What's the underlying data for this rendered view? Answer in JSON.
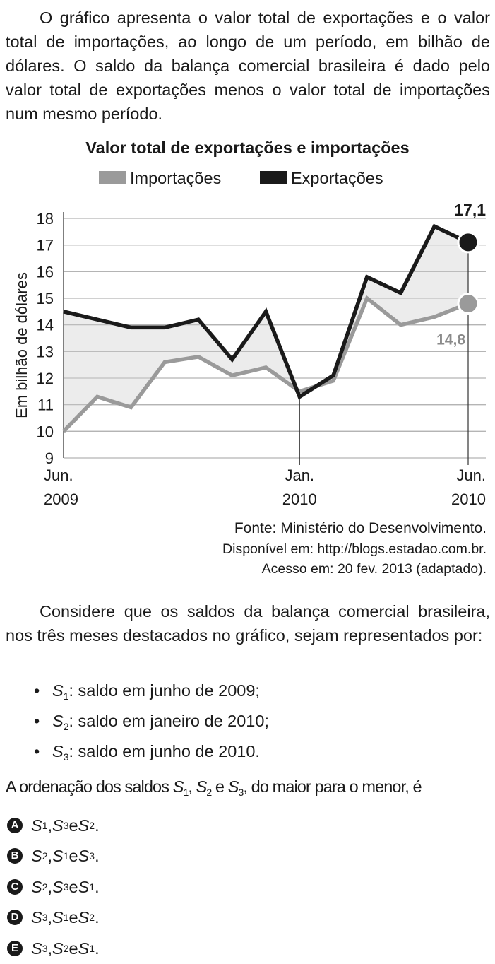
{
  "intro": {
    "text": "O gráfico apresenta o valor total de exportações e o valor total de importações, ao longo de um período, em bilhão de dólares. O saldo da balança comercial brasileira é dado pelo valor total de exportações menos o valor total de importações num mesmo período."
  },
  "colors": {
    "exports": "#1a1a1a",
    "imports": "#9a9a9a",
    "fill": "#ececec",
    "grid": "#b5b5b5"
  },
  "chart_data": {
    "type": "line",
    "title": "Valor total de exportações e importações",
    "ylabel": "Em bilhão de dólares",
    "xlabel": "",
    "ylim": [
      9,
      18
    ],
    "yticks": [
      9,
      10,
      11,
      12,
      13,
      14,
      15,
      16,
      17,
      18
    ],
    "grid": true,
    "legend_position": "top",
    "x_tick_labels": [
      {
        "index": 0,
        "line1": "Jun.",
        "line2": "2009"
      },
      {
        "index": 7,
        "line1": "Jan.",
        "line2": "2010"
      },
      {
        "index": 12,
        "line1": "Jun.",
        "line2": "2010"
      }
    ],
    "series": [
      {
        "name": "Importações",
        "color": "#9a9a9a",
        "values": [
          10.0,
          11.3,
          10.9,
          12.6,
          12.8,
          12.1,
          12.4,
          11.5,
          11.9,
          15.0,
          14.0,
          14.3,
          14.8
        ]
      },
      {
        "name": "Exportações",
        "color": "#1a1a1a",
        "values": [
          14.5,
          14.2,
          13.9,
          13.9,
          14.2,
          12.7,
          14.5,
          11.3,
          12.1,
          15.8,
          15.2,
          17.7,
          17.1
        ]
      }
    ],
    "annotations": [
      {
        "series": "Exportações",
        "index": 12,
        "label": "17,1"
      },
      {
        "series": "Importações",
        "index": 12,
        "label": "14,8"
      }
    ]
  },
  "source": {
    "line1": "Fonte: Ministério do Desenvolvimento.",
    "line2": "Disponível em: http://blogs.estadao.com.br.",
    "line3": "Acesso em: 20 fev. 2013 (adaptado)."
  },
  "consider": {
    "text": "Considere que os saldos da balança comercial brasileira, nos três meses destacados no gráfico, sejam representados por:"
  },
  "bullets": [
    {
      "symbol": "•",
      "var": "S",
      "sub": "1",
      "text": ": saldo em junho de 2009;"
    },
    {
      "symbol": "•",
      "var": "S",
      "sub": "2",
      "text": ": saldo em janeiro de 2010;"
    },
    {
      "symbol": "•",
      "var": "S",
      "sub": "3",
      "text": ": saldo em junho de 2010."
    }
  ],
  "question": {
    "prefix": "A ordenação dos saldos ",
    "var": "S",
    "subs": [
      "1",
      "2",
      "3"
    ],
    "sep1": ", ",
    "sep2": " e ",
    "suffix": ", do maior para o menor, é"
  },
  "options": [
    {
      "letter": "A",
      "order": [
        "1",
        "3",
        "2"
      ]
    },
    {
      "letter": "B",
      "order": [
        "2",
        "1",
        "3"
      ]
    },
    {
      "letter": "C",
      "order": [
        "2",
        "3",
        "1"
      ]
    },
    {
      "letter": "D",
      "order": [
        "3",
        "1",
        "2"
      ]
    },
    {
      "letter": "E",
      "order": [
        "3",
        "2",
        "1"
      ]
    }
  ],
  "option_parts": {
    "var": "S",
    "sep": ", ",
    "and": " e ",
    "end": "."
  }
}
